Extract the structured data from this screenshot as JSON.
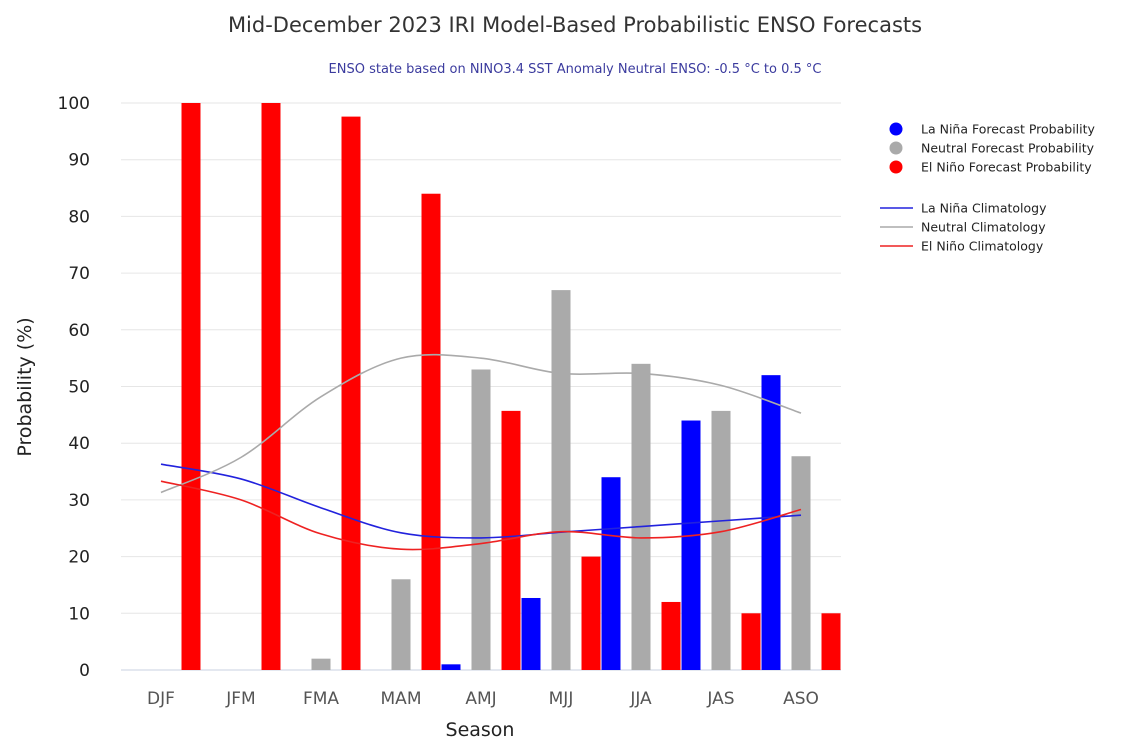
{
  "chart_data": {
    "type": "bar",
    "title": "Mid-December 2023 IRI Model-Based Probabilistic ENSO Forecasts",
    "subtitle": "ENSO state based on NINO3.4 SST Anomaly Neutral ENSO: -0.5 °C to 0.5 °C",
    "xlabel": "Season",
    "ylabel": "Probability (%)",
    "ylim": [
      0,
      100
    ],
    "yticks": [
      "0",
      "10",
      "20",
      "30",
      "40",
      "50",
      "60",
      "70",
      "80",
      "90",
      "100"
    ],
    "categories": [
      "DJF",
      "JFM",
      "FMA",
      "MAM",
      "AMJ",
      "MJJ",
      "JJA",
      "JAS",
      "ASO"
    ],
    "grid": true,
    "legend_position": "right",
    "series": [
      {
        "name": "La Niña Forecast Probability",
        "kind": "bar",
        "color": "#0000ff",
        "values": [
          0,
          0,
          0,
          0,
          1,
          12.7,
          34,
          44,
          52
        ]
      },
      {
        "name": "Neutral Forecast Probability",
        "kind": "bar",
        "color": "#aaaaaa",
        "values": [
          0,
          0,
          2,
          16,
          53,
          67,
          54,
          45.7,
          37.7
        ]
      },
      {
        "name": "El Niño Forecast Probability",
        "kind": "bar",
        "color": "#ff0000",
        "values": [
          100,
          100,
          97.6,
          84,
          45.7,
          20,
          12,
          10,
          10
        ]
      },
      {
        "name": "La Niña Climatology",
        "kind": "line",
        "color": "#2222dd",
        "values": [
          36.3,
          33.7,
          28.6,
          24.2,
          23.3,
          24.3,
          25.3,
          26.3,
          27.3
        ]
      },
      {
        "name": "Neutral Climatology",
        "kind": "line",
        "color": "#aaaaaa",
        "values": [
          31.3,
          37.5,
          48.2,
          55,
          55,
          52.3,
          52.3,
          50.2,
          45.3
        ]
      },
      {
        "name": "El Niño Climatology",
        "kind": "line",
        "color": "#ee2222",
        "values": [
          33.3,
          30,
          24,
          21.3,
          22.3,
          24.4,
          23.3,
          24.4,
          28.3
        ]
      }
    ]
  }
}
